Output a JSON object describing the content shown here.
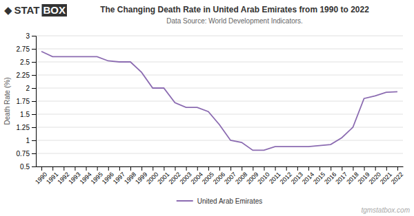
{
  "chart_data": {
    "type": "line",
    "title": "The Changing Death Rate in United Arab Emirates from 1990 to 2022",
    "subtitle": "Data Source: World Development Indicators.",
    "ylabel": "Death Rate (%)",
    "annotations": [
      "◆",
      "STAT",
      "BOX",
      "tgmstatbox.com"
    ],
    "x": [
      1990,
      1991,
      1992,
      1993,
      1994,
      1995,
      1996,
      1997,
      1998,
      1999,
      2000,
      2001,
      2002,
      2003,
      2004,
      2005,
      2006,
      2007,
      2008,
      2009,
      2010,
      2011,
      2012,
      2013,
      2014,
      2015,
      2016,
      2017,
      2018,
      2019,
      2020,
      2021,
      2022
    ],
    "series": [
      {
        "name": "United Arab Emirates",
        "color": "#8B6BB1",
        "values": [
          2.7,
          2.6,
          2.6,
          2.6,
          2.6,
          2.6,
          2.52,
          2.5,
          2.5,
          2.3,
          2.0,
          2.0,
          1.72,
          1.63,
          1.63,
          1.55,
          1.3,
          1.0,
          0.96,
          0.81,
          0.81,
          0.88,
          0.88,
          0.88,
          0.88,
          0.9,
          0.92,
          1.05,
          1.25,
          1.8,
          1.85,
          1.92,
          1.93
        ]
      }
    ],
    "xlim": [
      1989.5,
      2022.5
    ],
    "xticks": [
      1990,
      1991,
      1992,
      1993,
      1994,
      1995,
      1996,
      1997,
      1998,
      1999,
      2000,
      2001,
      2002,
      2003,
      2004,
      2005,
      2006,
      2007,
      2008,
      2009,
      2010,
      2011,
      2012,
      2013,
      2014,
      2015,
      2016,
      2017,
      2018,
      2019,
      2020,
      2021,
      2022
    ],
    "ylim": [
      0.5,
      3.0
    ],
    "yticks": [
      0.5,
      0.75,
      1,
      1.25,
      1.5,
      1.75,
      2,
      2.25,
      2.5,
      2.75,
      3
    ],
    "grid": true,
    "legend": "bottom"
  }
}
